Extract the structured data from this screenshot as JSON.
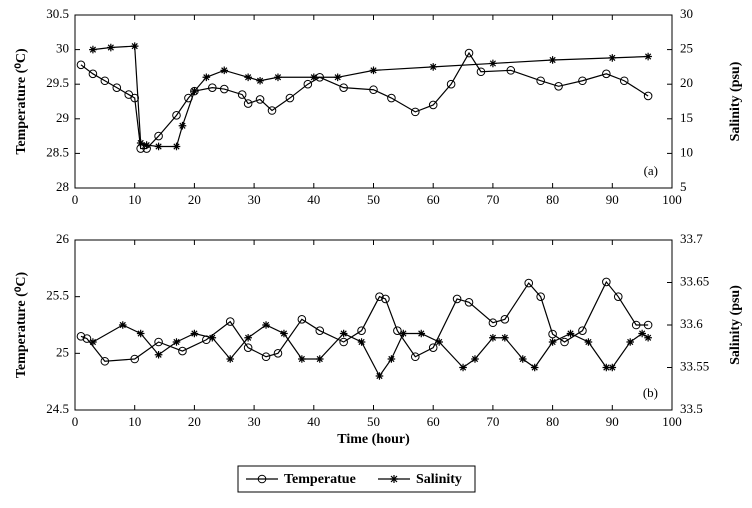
{
  "chart_data": [
    {
      "type": "line",
      "annotation": "(a)",
      "ylabel": "Temperature (⁰C)",
      "y2label": "Salinity (psu)",
      "xlim": [
        0,
        100
      ],
      "xticks": [
        0,
        10,
        20,
        30,
        40,
        50,
        60,
        70,
        80,
        90,
        100
      ],
      "ylim": [
        28,
        30.5
      ],
      "yticks": [
        28,
        28.5,
        29,
        29.5,
        30,
        30.5
      ],
      "y2lim": [
        5,
        30
      ],
      "y2ticks": [
        5,
        10,
        15,
        20,
        25,
        30
      ],
      "series": [
        {
          "name": "Temperatue",
          "color": "#000000",
          "marker": "o",
          "x": [
            1,
            3,
            5,
            7,
            9,
            10,
            11,
            12,
            14,
            17,
            19,
            20,
            23,
            25,
            28,
            29,
            31,
            33,
            36,
            39,
            41,
            45,
            50,
            53,
            57,
            60,
            63,
            66,
            68,
            73,
            78,
            81,
            85,
            89,
            92,
            96
          ],
          "values": [
            29.78,
            29.65,
            29.55,
            29.45,
            29.35,
            29.3,
            28.57,
            28.57,
            28.75,
            29.05,
            29.3,
            29.4,
            29.45,
            29.43,
            29.35,
            29.22,
            29.28,
            29.12,
            29.3,
            29.5,
            29.6,
            29.45,
            29.42,
            29.3,
            29.1,
            29.2,
            29.5,
            29.95,
            29.68,
            29.7,
            29.55,
            29.47,
            29.55,
            29.65,
            29.55,
            29.33
          ]
        },
        {
          "name": "Salinity",
          "color": "#000000",
          "marker": "*",
          "axis": "y2",
          "x": [
            3,
            6,
            10,
            11,
            12,
            14,
            17,
            18,
            20,
            22,
            25,
            29,
            31,
            34,
            40,
            44,
            50,
            60,
            70,
            80,
            90,
            96
          ],
          "values": [
            25,
            25.3,
            25.5,
            11.5,
            11.2,
            11,
            11,
            14,
            19,
            21,
            22,
            21,
            20.5,
            21,
            21,
            21,
            22,
            22.5,
            23,
            23.5,
            23.8,
            24
          ]
        }
      ]
    },
    {
      "type": "line",
      "annotation": "(b)",
      "ylabel": "Temperature (⁰C)",
      "y2label": "Salinity (psu)",
      "xlabel": "Time (hour)",
      "xlim": [
        0,
        100
      ],
      "xticks": [
        0,
        10,
        20,
        30,
        40,
        50,
        60,
        70,
        80,
        90,
        100
      ],
      "ylim": [
        24.5,
        26
      ],
      "yticks": [
        24.5,
        25,
        25.5,
        26
      ],
      "y2lim": [
        33.5,
        33.7
      ],
      "y2ticks": [
        33.5,
        33.55,
        33.6,
        33.65,
        33.7
      ],
      "series": [
        {
          "name": "Temperatue",
          "color": "#000000",
          "marker": "o",
          "x": [
            1,
            2,
            5,
            10,
            14,
            18,
            22,
            26,
            29,
            32,
            34,
            38,
            41,
            45,
            48,
            51,
            52,
            54,
            57,
            60,
            64,
            66,
            70,
            72,
            76,
            78,
            80,
            82,
            85,
            89,
            91,
            94,
            96
          ],
          "values": [
            25.15,
            25.13,
            24.93,
            24.95,
            25.1,
            25.02,
            25.12,
            25.28,
            25.05,
            24.97,
            25.0,
            25.3,
            25.2,
            25.1,
            25.2,
            25.5,
            25.48,
            25.2,
            24.97,
            25.05,
            25.48,
            25.45,
            25.27,
            25.3,
            25.62,
            25.5,
            25.17,
            25.1,
            25.2,
            25.63,
            25.5,
            25.25,
            25.25
          ]
        },
        {
          "name": "Salinity",
          "color": "#000000",
          "marker": "*",
          "axis": "y2",
          "x": [
            3,
            8,
            11,
            14,
            17,
            20,
            23,
            26,
            29,
            32,
            35,
            38,
            41,
            45,
            48,
            51,
            53,
            55,
            58,
            61,
            65,
            67,
            70,
            72,
            75,
            77,
            80,
            83,
            86,
            89,
            90,
            93,
            95,
            96
          ],
          "values": [
            33.58,
            33.6,
            33.59,
            33.565,
            33.58,
            33.59,
            33.585,
            33.56,
            33.585,
            33.6,
            33.59,
            33.56,
            33.56,
            33.59,
            33.58,
            33.54,
            33.56,
            33.59,
            33.59,
            33.58,
            33.55,
            33.56,
            33.585,
            33.585,
            33.56,
            33.55,
            33.58,
            33.59,
            33.58,
            33.55,
            33.55,
            33.58,
            33.59,
            33.585
          ]
        }
      ]
    }
  ]
}
